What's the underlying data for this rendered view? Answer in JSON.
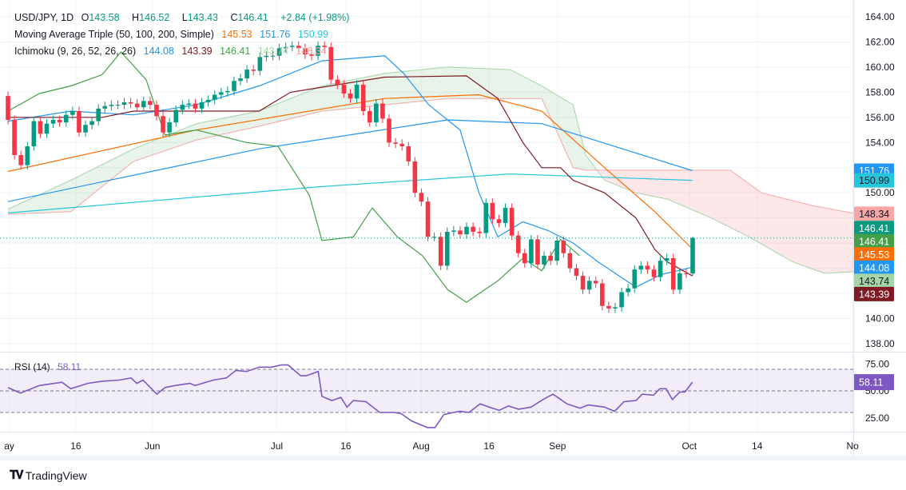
{
  "header": {
    "symbol": "USD/JPY, 1D",
    "open_label": "O",
    "open": "143.58",
    "high_label": "H",
    "high": "146.52",
    "low_label": "L",
    "low": "143.43",
    "close_label": "C",
    "close": "146.41",
    "change": "+2.84 (+1.98%)",
    "ma_title": "Moving Average Triple (50, 100, 200, Simple)",
    "ma_values": [
      "145.53",
      "151.76",
      "150.99"
    ],
    "ichimoku_title": "Ichimoku (9, 26, 52, 26, 26)",
    "ichimoku_values": [
      "144.08",
      "143.39",
      "146.41",
      "143.74",
      "148.34"
    ]
  },
  "colors": {
    "up": "#089981",
    "down": "#f23645",
    "ma50": "#ff6d00",
    "ma100": "#2196f3",
    "ma200": "#26c6da",
    "tenkan": "#2196f3",
    "kijun": "#801922",
    "chikou": "#43a047",
    "rsi": "#7e57c2"
  },
  "chart_data": [
    {
      "type": "candlestick",
      "title": "USD/JPY, 1D",
      "ylim": [
        138,
        164
      ],
      "y_ticks": [
        "164.00",
        "162.00",
        "160.00",
        "158.00",
        "156.00",
        "154.00",
        "150.00",
        "140.00",
        "138.00"
      ],
      "x_ticks": [
        {
          "label": "ay",
          "i": 0.2
        },
        {
          "label": "16",
          "i": 10.8
        },
        {
          "label": "Jun",
          "i": 23
        },
        {
          "label": "Jul",
          "i": 42.8
        },
        {
          "label": "16",
          "i": 53.8
        },
        {
          "label": "Aug",
          "i": 65.8
        },
        {
          "label": "16",
          "i": 76.6
        },
        {
          "label": "Sep",
          "i": 87.5
        },
        {
          "label": "Oct",
          "i": 108.5
        },
        {
          "label": "14",
          "i": 119.3
        },
        {
          "label": "No",
          "i": 134.5
        }
      ],
      "closes": [
        155.8,
        153.0,
        152.2,
        153.7,
        155.7,
        154.7,
        155.5,
        155.8,
        155.6,
        156.2,
        156.5,
        154.8,
        155.4,
        155.7,
        156.7,
        156.9,
        157.0,
        157.0,
        157.2,
        157.1,
        156.8,
        157.3,
        157.0,
        156.1,
        154.8,
        155.6,
        156.6,
        157.0,
        157.1,
        156.7,
        157.2,
        157.4,
        157.8,
        158.0,
        158.1,
        158.9,
        159.1,
        159.8,
        159.7,
        160.8,
        160.9,
        160.9,
        161.5,
        161.6,
        161.7,
        161.5,
        161.0,
        160.9,
        161.7,
        161.6,
        159.0,
        158.6,
        157.9,
        157.5,
        158.6,
        156.5,
        155.6,
        157.1,
        155.9,
        154.0,
        153.9,
        153.7,
        152.5,
        150.0,
        149.3,
        146.5,
        146.5,
        144.2,
        146.9,
        147.0,
        146.7,
        147.3,
        146.9,
        146.8,
        149.2,
        147.9,
        147.6,
        148.8,
        146.6,
        145.2,
        144.4,
        146.3,
        144.3,
        145.0,
        144.6,
        146.2,
        145.2,
        144.0,
        143.4,
        142.3,
        143.0,
        142.8,
        141.0,
        140.8,
        140.9,
        142.1,
        142.4,
        143.9,
        144.2,
        143.9,
        143.3,
        144.6,
        144.8,
        142.3,
        143.6,
        143.58,
        146.41
      ],
      "first_open": 157.7,
      "last_candle": {
        "open": 143.58,
        "high": 146.52,
        "low": 143.43,
        "close": 146.41
      },
      "series": [
        {
          "name": "MA 50",
          "color": "#ff6d00",
          "points": [
            [
              0,
              151.7
            ],
            [
              30,
              155
            ],
            [
              60,
              157.5
            ],
            [
              75,
              157.8
            ],
            [
              85,
              156.5
            ],
            [
              95,
              152
            ],
            [
              103,
              148.5
            ],
            [
              109,
              145.53
            ]
          ]
        },
        {
          "name": "MA 100",
          "color": "#2196f3",
          "points": [
            [
              0,
              149.3
            ],
            [
              40,
              153.5
            ],
            [
              70,
              155.8
            ],
            [
              85,
              155.5
            ],
            [
              109,
              151.76
            ]
          ]
        },
        {
          "name": "MA 200",
          "color": "#26c6da",
          "points": [
            [
              0,
              148.4
            ],
            [
              50,
              150.5
            ],
            [
              80,
              151.5
            ],
            [
              109,
              150.99
            ]
          ]
        },
        {
          "name": "Tenkan",
          "color": "#2196f3",
          "points": [
            [
              0,
              155.7
            ],
            [
              10,
              156.5
            ],
            [
              20,
              156.2
            ],
            [
              30,
              157.0
            ],
            [
              40,
              158.5
            ],
            [
              50,
              160.5
            ],
            [
              60,
              160.9
            ],
            [
              63,
              159.5
            ],
            [
              67,
              157.0
            ],
            [
              72,
              155.0
            ],
            [
              75,
              150
            ],
            [
              78,
              146.5
            ],
            [
              82,
              147.7
            ],
            [
              86,
              147.0
            ],
            [
              90,
              146
            ],
            [
              94,
              144.5
            ],
            [
              97,
              143.5
            ],
            [
              100,
              142.5
            ],
            [
              104,
              143.5
            ],
            [
              109,
              144.08
            ]
          ]
        },
        {
          "name": "Kijun",
          "color": "#801922",
          "points": [
            [
              0,
              156
            ],
            [
              15,
              156
            ],
            [
              20,
              156.5
            ],
            [
              40,
              156.5
            ],
            [
              45,
              158
            ],
            [
              60,
              159.2
            ],
            [
              73,
              159.3
            ],
            [
              78,
              157.5
            ],
            [
              82,
              154
            ],
            [
              85,
              152
            ],
            [
              88,
              152
            ],
            [
              90,
              151
            ],
            [
              95,
              150
            ],
            [
              100,
              148
            ],
            [
              103,
              145.5
            ],
            [
              105,
              144.5
            ],
            [
              109,
              143.39
            ]
          ]
        },
        {
          "name": "Chikou",
          "color": "#43a047",
          "points": [
            [
              0,
              156.5
            ],
            [
              5,
              157.9
            ],
            [
              10,
              158.5
            ],
            [
              15,
              159.4
            ],
            [
              18,
              161.2
            ],
            [
              22,
              159
            ],
            [
              25,
              154.6
            ],
            [
              30,
              155
            ],
            [
              38,
              154
            ],
            [
              43,
              153.7
            ],
            [
              48,
              149.8
            ],
            [
              50,
              146.2
            ],
            [
              55,
              146.5
            ],
            [
              58,
              148.8
            ],
            [
              62,
              146.5
            ],
            [
              66,
              145.0
            ],
            [
              70,
              142.3
            ],
            [
              73,
              141.3
            ],
            [
              78,
              143.0
            ],
            [
              82,
              144.8
            ],
            [
              85,
              143.8
            ],
            [
              88,
              146.3
            ],
            [
              91,
              145
            ],
            [
              83,
              146.41
            ]
          ]
        }
      ],
      "cloud": {
        "span_a": [
          [
            0,
            148.7
          ],
          [
            10,
            151
          ],
          [
            20,
            153.5
          ],
          [
            30,
            155.5
          ],
          [
            40,
            156.5
          ],
          [
            50,
            158.5
          ],
          [
            60,
            159.5
          ],
          [
            70,
            160
          ],
          [
            80,
            159.8
          ],
          [
            85,
            158.5
          ],
          [
            90,
            157
          ],
          [
            92,
            153
          ],
          [
            95,
            151
          ],
          [
            100,
            150
          ],
          [
            105,
            149.5
          ],
          [
            112,
            148
          ],
          [
            118,
            146.5
          ],
          [
            125,
            144.5
          ],
          [
            130,
            143.6
          ],
          [
            135,
            143.74
          ]
        ],
        "span_b": [
          [
            0,
            148.3
          ],
          [
            10,
            148.5
          ],
          [
            20,
            152.5
          ],
          [
            30,
            154.2
          ],
          [
            40,
            155.3
          ],
          [
            50,
            156.5
          ],
          [
            60,
            157.0
          ],
          [
            70,
            157.5
          ],
          [
            85,
            157.5
          ],
          [
            90,
            152
          ],
          [
            92,
            151.8
          ],
          [
            115,
            151.8
          ],
          [
            120,
            150
          ],
          [
            128,
            149
          ],
          [
            135,
            148.34
          ]
        ]
      },
      "price_badges": [
        {
          "value": "151.76",
          "color": "#2196f3",
          "text": "#fff",
          "price": 151.76
        },
        {
          "value": "150.99",
          "color": "#26c6da",
          "text": "#131722",
          "price": 150.99
        },
        {
          "value": "148.34",
          "color": "#f7a5a5",
          "text": "#131722",
          "price": 148.34
        },
        {
          "value": "146.41",
          "color": "#089981",
          "text": "#fff",
          "price": 147.2
        },
        {
          "value": "146.41",
          "color": "#43a047",
          "text": "#fff",
          "price": 146.15
        },
        {
          "value": "145.53",
          "color": "#ff6d00",
          "text": "#fff",
          "price": 145.1
        },
        {
          "value": "144.08",
          "color": "#2196f3",
          "text": "#fff",
          "price": 144.05
        },
        {
          "value": "143.74",
          "color": "#a5d6a7",
          "text": "#131722",
          "price": 143.0
        },
        {
          "value": "143.39",
          "color": "#801922",
          "text": "#fff",
          "price": 141.95
        }
      ]
    },
    {
      "type": "line",
      "title": "RSI (14)",
      "value": "58.11",
      "ylim": [
        15,
        77
      ],
      "bands": [
        70,
        50,
        30
      ],
      "y_ticks": [
        "75.00",
        "50.00",
        "25.00"
      ],
      "points": [
        [
          0,
          53
        ],
        [
          2,
          48
        ],
        [
          5,
          55
        ],
        [
          8.6,
          58
        ],
        [
          10,
          52
        ],
        [
          12.7,
          57
        ],
        [
          15,
          59
        ],
        [
          17.7,
          60
        ],
        [
          19.6,
          62
        ],
        [
          20.5,
          57
        ],
        [
          21.5,
          60
        ],
        [
          23.7,
          47
        ],
        [
          25,
          53
        ],
        [
          26.6,
          55
        ],
        [
          29,
          57
        ],
        [
          29.8,
          55
        ],
        [
          32.7,
          60
        ],
        [
          34.8,
          62
        ],
        [
          36.3,
          69
        ],
        [
          38,
          68
        ],
        [
          40,
          72
        ],
        [
          42,
          72
        ],
        [
          43.5,
          74
        ],
        [
          44.6,
          74
        ],
        [
          46.6,
          64
        ],
        [
          47.5,
          64
        ],
        [
          49.4,
          68
        ],
        [
          50,
          45
        ],
        [
          51.6,
          41
        ],
        [
          53,
          44
        ],
        [
          54,
          35
        ],
        [
          55,
          41
        ],
        [
          57,
          40
        ],
        [
          59.2,
          30
        ],
        [
          61.5,
          30
        ],
        [
          62.6,
          29
        ],
        [
          64.3,
          22
        ],
        [
          66.8,
          16
        ],
        [
          68,
          16
        ],
        [
          69.4,
          28
        ],
        [
          70.9,
          30
        ],
        [
          72,
          31
        ],
        [
          73.4,
          30
        ],
        [
          75.2,
          38
        ],
        [
          76.6,
          35
        ],
        [
          78.2,
          32
        ],
        [
          79.7,
          36
        ],
        [
          81.3,
          33
        ],
        [
          83.3,
          35
        ],
        [
          85.2,
          42
        ],
        [
          86.8,
          47
        ],
        [
          89,
          38
        ],
        [
          91.1,
          34
        ],
        [
          92.4,
          37
        ],
        [
          95,
          35
        ],
        [
          96.6,
          31
        ],
        [
          98.1,
          40
        ],
        [
          100,
          41
        ],
        [
          101,
          47
        ],
        [
          102.8,
          46
        ],
        [
          103.8,
          52
        ],
        [
          104.8,
          52
        ],
        [
          105.8,
          42
        ],
        [
          107,
          49
        ],
        [
          107.8,
          49
        ],
        [
          109,
          58.11
        ]
      ]
    }
  ],
  "footer": {
    "logo_mark": "17",
    "brand": "TradingView"
  }
}
